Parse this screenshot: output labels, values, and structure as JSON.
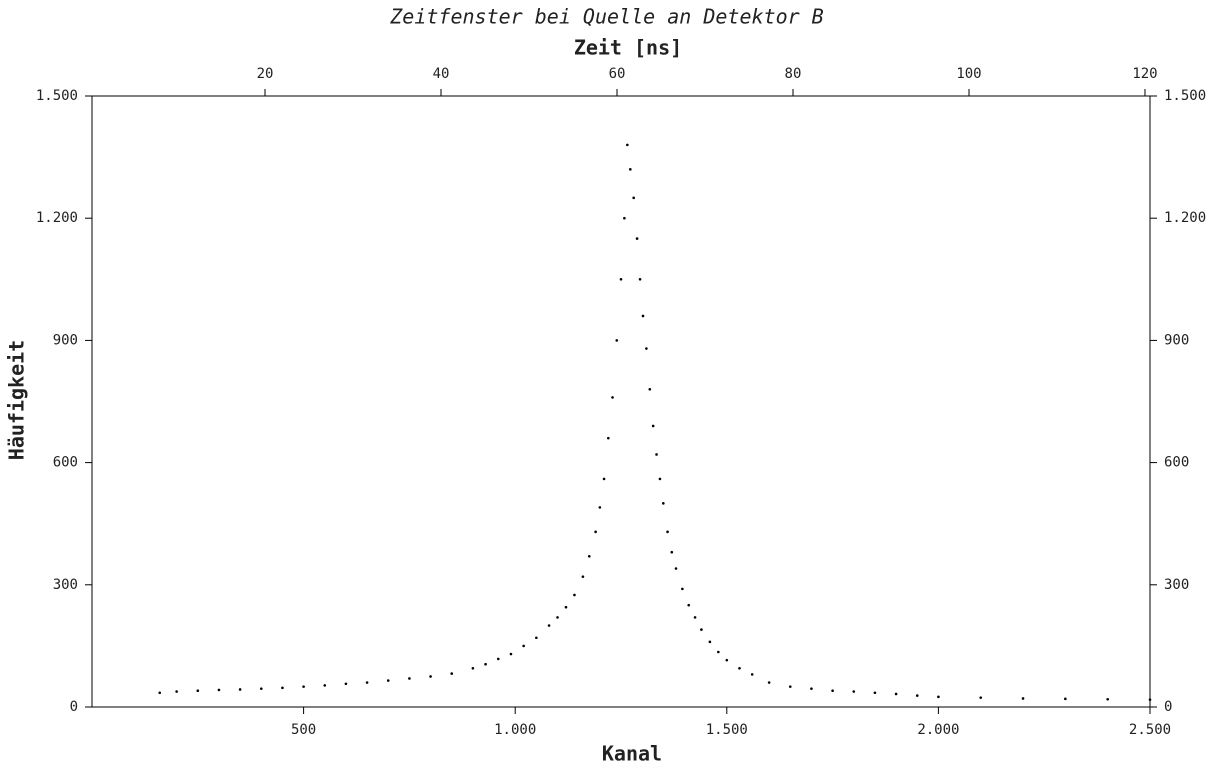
{
  "chart_data": {
    "type": "scatter",
    "title": "Zeitfenster bei Quelle an Detektor B",
    "xlabel": "Kanal",
    "ylabel": "Häufigkeit",
    "x2label": "Zeit [ns]",
    "color": "#000000",
    "xlim": [
      0,
      2500
    ],
    "xticks": [
      500,
      {
        "value": 1000,
        "label": "1.000"
      },
      {
        "value": 1500,
        "label": "1.500"
      },
      {
        "value": 2000,
        "label": "2.000"
      },
      {
        "value": 2500,
        "label": "2.500"
      }
    ],
    "x2lim": [
      0.34,
      120.57
    ],
    "x2ticks": [
      20,
      40,
      60,
      80,
      100,
      120
    ],
    "ylim": [
      0,
      1500
    ],
    "yticks": [
      0,
      300,
      600,
      900,
      {
        "value": 1200,
        "label": "1.200"
      },
      {
        "value": 1500,
        "label": "1.500"
      }
    ],
    "x": [
      160,
      200,
      250,
      300,
      350,
      400,
      450,
      500,
      550,
      600,
      650,
      700,
      750,
      800,
      850,
      900,
      930,
      960,
      990,
      1020,
      1050,
      1080,
      1100,
      1120,
      1140,
      1160,
      1175,
      1190,
      1200,
      1210,
      1220,
      1230,
      1240,
      1250,
      1258,
      1265,
      1272,
      1280,
      1288,
      1295,
      1302,
      1310,
      1318,
      1326,
      1334,
      1342,
      1350,
      1360,
      1370,
      1380,
      1395,
      1410,
      1425,
      1440,
      1460,
      1480,
      1500,
      1530,
      1560,
      1600,
      1650,
      1700,
      1750,
      1800,
      1850,
      1900,
      1950,
      2000,
      2100,
      2200,
      2300,
      2400,
      2500
    ],
    "values": [
      35,
      38,
      40,
      42,
      43,
      45,
      47,
      50,
      53,
      57,
      60,
      65,
      70,
      75,
      82,
      95,
      105,
      118,
      130,
      150,
      170,
      200,
      220,
      245,
      275,
      320,
      370,
      430,
      490,
      560,
      660,
      760,
      900,
      1050,
      1200,
      1380,
      1320,
      1250,
      1150,
      1050,
      960,
      880,
      780,
      690,
      620,
      560,
      500,
      430,
      380,
      340,
      290,
      250,
      220,
      190,
      160,
      135,
      115,
      95,
      80,
      60,
      50,
      45,
      40,
      38,
      35,
      32,
      28,
      25,
      23,
      21,
      20,
      19,
      18
    ]
  }
}
